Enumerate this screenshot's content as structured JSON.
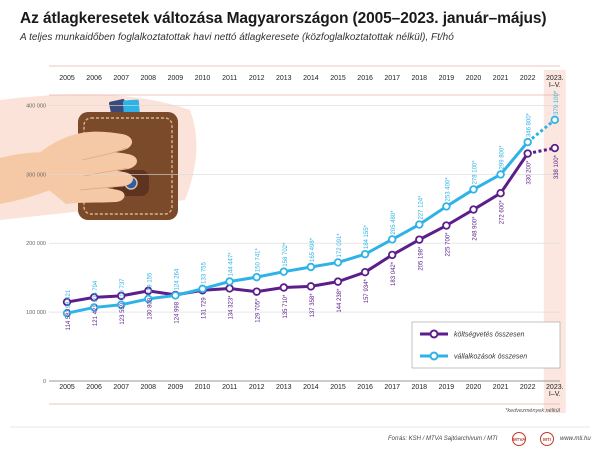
{
  "title": "Az átlagkeresetek változása Magyarországon (2005–2023. január–május)",
  "subtitle": "A teljes munkaidőben foglalkoztatottak havi nettó átlagkeresete (közfoglalkoztatottak nélkül), Ft/hó",
  "footnote": "*kedvezmények nélkül",
  "source": "Forrás: KSH / MTVA Sajtóarchívum / MTI",
  "website": "www.mti.hu",
  "logos": [
    "MTVA",
    "MTI"
  ],
  "colors": {
    "budget": "#5b1e8a",
    "business": "#2fb3e6",
    "highlight_band": "#fbe6e0",
    "grid": "#d9d9d9",
    "accent_line": "#e8b0a6"
  },
  "illustration": "wallet-hand-illustration",
  "chart_data": {
    "type": "line",
    "categories": [
      "2005",
      "2006",
      "2007",
      "2008",
      "2009",
      "2010",
      "2011",
      "2012",
      "2013",
      "2014",
      "2015",
      "2016",
      "2017",
      "2018",
      "2019",
      "2020",
      "2021",
      "2022",
      "2023. I–V."
    ],
    "ylim": [
      0,
      450000
    ],
    "yticks": [
      "0",
      "100 000",
      "200 000",
      "300 000",
      "400 000"
    ],
    "ytick_values": [
      0,
      100000,
      200000,
      300000,
      400000
    ],
    "grid": true,
    "legend_position": "bottom-right",
    "series": [
      {
        "name": "költségvetés összesen",
        "color": "#5b1e8a",
        "values": [
          114583,
          121421,
          123559,
          130809,
          124998,
          131729,
          134323,
          129705,
          135710,
          137358,
          144238,
          157934,
          183042,
          205198,
          225700,
          248900,
          272600,
          330200,
          338100
        ],
        "labels": [
          "114 583",
          "121 421",
          "123 559",
          "130 809",
          "124 998",
          "131 729",
          "134 323*",
          "129 705*",
          "135 710*",
          "137 358*",
          "144 238*",
          "157 934*",
          "183 042*",
          "205 198*",
          "225 700*",
          "248 900*",
          "272 600*",
          "330 200*",
          "338 100*"
        ]
      },
      {
        "name": "vállalkozások összesen",
        "color": "#2fb3e6",
        "values": [
          98421,
          106794,
          110737,
          119155,
          124264,
          133755,
          144447,
          150741,
          158702,
          165498,
          172091,
          184155,
          205480,
          227124,
          253400,
          278100,
          299800,
          346800,
          379100
        ],
        "labels": [
          "98 421",
          "106 794",
          "110 737",
          "119 155",
          "124 264",
          "133 755",
          "144 447*",
          "150 741*",
          "158 702*",
          "165 498*",
          "172 091*",
          "184 155*",
          "205 480*",
          "227 124*",
          "253 400*",
          "278 100*",
          "299 800*",
          "346 800*",
          "379 100*"
        ]
      }
    ]
  }
}
